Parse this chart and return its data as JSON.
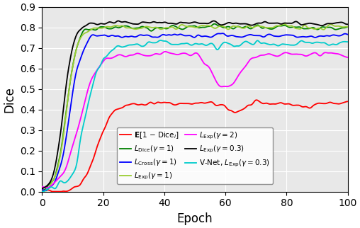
{
  "title": "",
  "xlabel": "Epoch",
  "ylabel": "Dice",
  "xlim": [
    0,
    100
  ],
  "ylim": [
    0.0,
    0.9
  ],
  "yticks": [
    0.0,
    0.1,
    0.2,
    0.3,
    0.4,
    0.5,
    0.6,
    0.7,
    0.8,
    0.9
  ],
  "xticks": [
    0,
    20,
    40,
    60,
    80,
    100
  ],
  "figsize": [
    5.08,
    3.22
  ],
  "dpi": 100,
  "colors": {
    "E_dice": "#ff0000",
    "L_dice": "#008000",
    "L_cross": "#0000ff",
    "L_exp_1": "#9acd32",
    "L_exp_2": "#ff00ff",
    "L_exp_03": "#000000",
    "vnet_exp_03": "#00cccc"
  },
  "legend_labels": [
    "E[1 − Dice_i]",
    "L_Dice(γ = 1)",
    "L_Cross(γ = 1)",
    "L_Exp(γ = 1)",
    "L_Exp(γ = 2)",
    "L_Exp(γ = 0.3)",
    "V-Net, L_Exp(γ = 0.3)"
  ],
  "seed": 42
}
